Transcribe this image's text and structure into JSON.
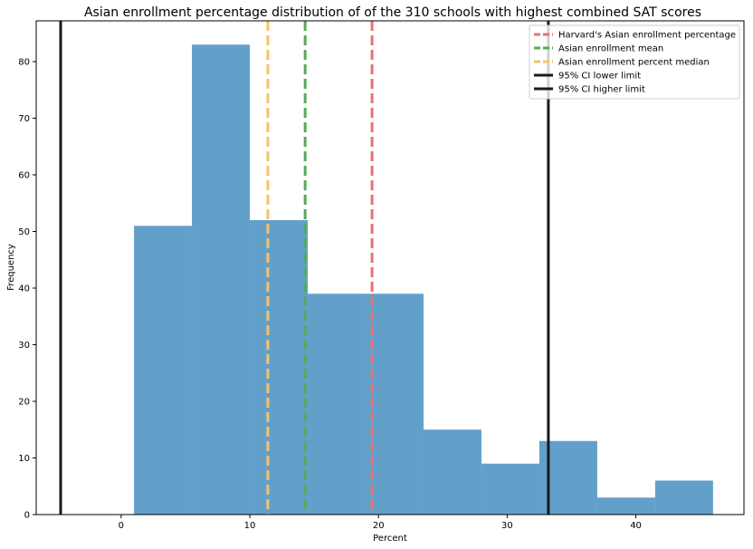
{
  "chart_data": {
    "type": "histogram",
    "title": "Asian enrollment percentage distribution of of the 310 schools with highest combined SAT scores",
    "xlabel": "Percent",
    "ylabel": "Frequency",
    "xlim": [
      -6.6,
      48.4
    ],
    "ylim": [
      0,
      87.2
    ],
    "xticks": [
      0,
      10,
      20,
      30,
      40
    ],
    "yticks": [
      0,
      10,
      20,
      30,
      40,
      50,
      60,
      70,
      80
    ],
    "bar_color": "#1f77b4",
    "bins": [
      {
        "x0": 1.0,
        "x1": 5.5,
        "count": 51
      },
      {
        "x0": 5.5,
        "x1": 10.0,
        "count": 83
      },
      {
        "x0": 10.0,
        "x1": 14.5,
        "count": 52
      },
      {
        "x0": 14.5,
        "x1": 19.0,
        "count": 39
      },
      {
        "x0": 19.0,
        "x1": 23.5,
        "count": 39
      },
      {
        "x0": 23.5,
        "x1": 28.0,
        "count": 15
      },
      {
        "x0": 28.0,
        "x1": 32.5,
        "count": 9
      },
      {
        "x0": 32.5,
        "x1": 37.0,
        "count": 13
      },
      {
        "x0": 37.0,
        "x1": 41.5,
        "count": 3
      },
      {
        "x0": 41.5,
        "x1": 46.0,
        "count": 6
      }
    ],
    "vlines": [
      {
        "name": "Harvard's Asian enrollment percentage",
        "x": 19.5,
        "color": "#e8726f",
        "style": "dashed"
      },
      {
        "name": "Asian enrollment mean",
        "x": 14.3,
        "color": "#5aa85c",
        "style": "dashed"
      },
      {
        "name": "Asian enrollment percent median",
        "x": 11.4,
        "color": "#f5c26b",
        "style": "dashed"
      },
      {
        "name": "95% CI lower limit",
        "x": -4.7,
        "color": "#1a1a1a",
        "style": "solid"
      },
      {
        "name": "95% CI higher limit",
        "x": 33.2,
        "color": "#1a1a1a",
        "style": "solid"
      }
    ],
    "legend_position": "top-right",
    "grid": false
  }
}
